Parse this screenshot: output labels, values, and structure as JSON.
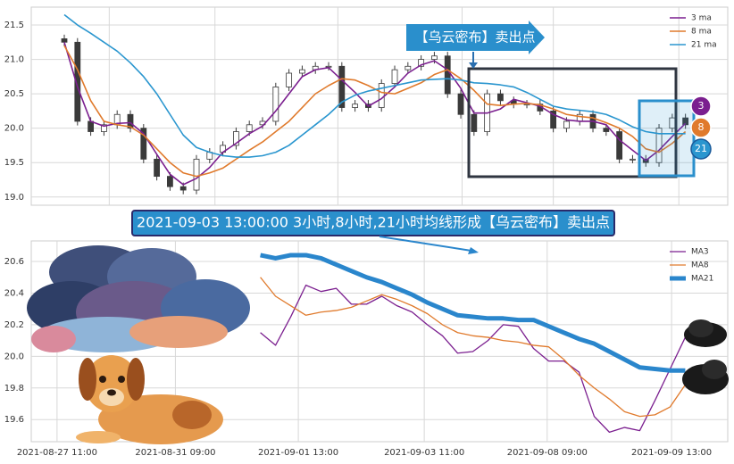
{
  "chart_data": [
    {
      "type": "candlestick",
      "categories": [
        null,
        null,
        null,
        null,
        null,
        null,
        null,
        null,
        null,
        null,
        null,
        null,
        null,
        null,
        null,
        null,
        null,
        null,
        null,
        null,
        null,
        null,
        null,
        null,
        null,
        null,
        null,
        null,
        null,
        null,
        null,
        null,
        null,
        null,
        null,
        null,
        null,
        null,
        null,
        null,
        null,
        null,
        null,
        null,
        null,
        null,
        null,
        null
      ],
      "open": [
        21.3,
        21.25,
        20.1,
        19.95,
        20.05,
        20.2,
        20.0,
        19.55,
        19.3,
        19.15,
        19.1,
        19.55,
        19.65,
        19.75,
        19.95,
        20.05,
        20.1,
        20.6,
        20.8,
        20.85,
        20.9,
        20.9,
        20.3,
        20.35,
        20.3,
        20.65,
        20.85,
        20.9,
        21.0,
        21.05,
        20.5,
        20.2,
        19.95,
        20.5,
        20.4,
        20.35,
        20.35,
        20.25,
        20.0,
        20.1,
        20.2,
        20.0,
        19.95,
        19.55,
        19.55,
        19.5,
        20.0,
        20.15
      ],
      "high": [
        21.36,
        21.31,
        20.16,
        20.11,
        20.26,
        20.26,
        20.06,
        19.61,
        19.36,
        19.21,
        19.61,
        19.71,
        19.81,
        20.01,
        20.11,
        20.16,
        20.66,
        20.86,
        20.91,
        20.96,
        20.96,
        20.96,
        20.41,
        20.41,
        20.71,
        20.91,
        20.96,
        21.06,
        21.11,
        21.11,
        20.56,
        20.26,
        20.56,
        20.56,
        20.46,
        20.41,
        20.41,
        20.31,
        20.16,
        20.26,
        20.26,
        20.06,
        20.01,
        19.61,
        19.61,
        20.06,
        20.21,
        20.21
      ],
      "low": [
        21.19,
        20.04,
        19.89,
        19.89,
        19.99,
        19.94,
        19.49,
        19.24,
        19.09,
        19.04,
        19.04,
        19.49,
        19.59,
        19.69,
        19.89,
        19.99,
        20.04,
        20.54,
        20.74,
        20.79,
        20.84,
        20.24,
        20.24,
        20.24,
        20.24,
        20.59,
        20.79,
        20.84,
        20.94,
        20.44,
        20.14,
        19.89,
        19.89,
        20.34,
        20.29,
        20.29,
        20.19,
        19.94,
        19.94,
        20.04,
        19.94,
        19.89,
        19.49,
        19.49,
        19.44,
        19.44,
        19.94,
        19.99
      ],
      "close": [
        21.25,
        20.1,
        19.95,
        20.05,
        20.2,
        20.0,
        19.55,
        19.3,
        19.15,
        19.1,
        19.55,
        19.65,
        19.75,
        19.95,
        20.05,
        20.1,
        20.6,
        20.8,
        20.85,
        20.9,
        20.9,
        20.3,
        20.35,
        20.3,
        20.65,
        20.85,
        20.9,
        21.0,
        21.05,
        20.5,
        20.2,
        19.95,
        20.5,
        20.4,
        20.35,
        20.35,
        20.25,
        20.0,
        20.1,
        20.2,
        20.0,
        19.95,
        19.55,
        19.55,
        19.5,
        20.0,
        20.15,
        20.05
      ],
      "candle_colors": {
        "up": "#ffffff",
        "down": "#3a3a3a"
      },
      "series": [
        {
          "name": "3 ma",
          "color": "#7b1f8f",
          "values": [
            21.25,
            20.6,
            20.1,
            20.03,
            20.07,
            20.08,
            19.92,
            19.62,
            19.33,
            19.18,
            19.27,
            19.43,
            19.65,
            19.78,
            19.92,
            20.03,
            20.25,
            20.5,
            20.75,
            20.85,
            20.88,
            20.7,
            20.52,
            20.32,
            20.43,
            20.6,
            20.8,
            20.92,
            20.98,
            20.85,
            20.58,
            20.22,
            20.22,
            20.28,
            20.42,
            20.37,
            20.32,
            20.2,
            20.12,
            20.1,
            20.1,
            20.05,
            19.83,
            19.68,
            19.53,
            19.68,
            19.88,
            20.07
          ]
        },
        {
          "name": "8 ma",
          "color": "#e07a2c",
          "values": [
            21.2,
            20.85,
            20.4,
            20.1,
            20.05,
            20.02,
            19.9,
            19.7,
            19.5,
            19.35,
            19.3,
            19.35,
            19.42,
            19.55,
            19.68,
            19.8,
            19.95,
            20.1,
            20.3,
            20.5,
            20.62,
            20.72,
            20.7,
            20.62,
            20.52,
            20.5,
            20.58,
            20.66,
            20.78,
            20.85,
            20.72,
            20.55,
            20.35,
            20.33,
            20.35,
            20.36,
            20.34,
            20.28,
            20.2,
            20.17,
            20.15,
            20.08,
            20.0,
            19.88,
            19.7,
            19.65,
            19.78,
            19.95
          ]
        },
        {
          "name": "21 ma",
          "color": "#2a96cf",
          "values": [
            21.65,
            21.5,
            21.38,
            21.25,
            21.12,
            20.95,
            20.75,
            20.5,
            20.2,
            19.9,
            19.72,
            19.65,
            19.6,
            19.58,
            19.58,
            19.6,
            19.65,
            19.75,
            19.9,
            20.05,
            20.2,
            20.38,
            20.48,
            20.54,
            20.58,
            20.62,
            20.66,
            20.7,
            20.71,
            20.72,
            20.7,
            20.66,
            20.65,
            20.63,
            20.6,
            20.52,
            20.42,
            20.32,
            20.28,
            20.26,
            20.24,
            20.2,
            20.12,
            20.02,
            19.95,
            19.92,
            19.92,
            19.92
          ]
        }
      ],
      "xlim": [
        -2.5,
        50.2
      ],
      "xticks": [
        3.4,
        11.4,
        20.7,
        30.1,
        37,
        46.5
      ],
      "ylim": [
        18.88,
        21.76
      ],
      "yticks": [
        {
          "value": 19,
          "label": "19.0"
        },
        19.5,
        {
          "value": 20,
          "label": "20.0"
        },
        20.5,
        {
          "value": 21,
          "label": "21.0"
        },
        21.5
      ],
      "grid": true,
      "legend": "upper right",
      "annotations": [
        "【乌云密布】卖出点",
        "3",
        "8",
        "21"
      ]
    },
    {
      "type": "line",
      "categories": [
        null,
        null,
        null,
        null,
        null,
        null,
        null,
        null,
        null,
        null,
        null,
        null,
        null,
        null,
        null,
        null,
        null,
        null,
        null,
        null,
        null,
        null,
        null,
        null,
        null,
        null,
        null,
        null,
        null
      ],
      "series": [
        {
          "name": "MA3",
          "color": "#7b1f8f",
          "values": [
            20.15,
            20.07,
            20.25,
            20.45,
            20.41,
            20.43,
            20.33,
            20.33,
            20.38,
            20.32,
            20.28,
            20.2,
            20.13,
            20.02,
            20.03,
            20.1,
            20.2,
            20.19,
            20.05,
            19.97,
            19.97,
            19.9,
            19.62,
            19.52,
            19.55,
            19.53,
            19.72,
            19.92,
            20.12
          ]
        },
        {
          "name": "MA8",
          "color": "#e07a2c",
          "values": [
            20.5,
            20.38,
            20.32,
            20.26,
            20.28,
            20.29,
            20.31,
            20.35,
            20.39,
            20.36,
            20.32,
            20.27,
            20.2,
            20.15,
            20.13,
            20.12,
            20.1,
            20.09,
            20.07,
            20.06,
            19.98,
            19.88,
            19.8,
            19.73,
            19.65,
            19.62,
            19.63,
            19.68,
            19.82
          ]
        },
        {
          "name": "MA21",
          "color": "#2a86cc",
          "values": [
            20.64,
            20.62,
            20.64,
            20.64,
            20.62,
            20.58,
            20.54,
            20.5,
            20.47,
            20.43,
            20.39,
            20.34,
            20.3,
            20.26,
            20.25,
            20.24,
            20.24,
            20.23,
            20.23,
            20.19,
            20.15,
            20.11,
            20.08,
            20.03,
            19.98,
            19.93,
            19.92,
            19.91,
            19.91
          ]
        }
      ],
      "xlim": [
        -15.1,
        30.8
      ],
      "xticks": [
        {
          "value": -13.4,
          "label": "2021-08-27 11:00"
        },
        {
          "value": -5.6,
          "label": "2021-08-31 09:00"
        },
        {
          "value": 2.5,
          "label": "2021-09-01 13:00"
        },
        {
          "value": 10.8,
          "label": "2021-09-03 11:00"
        },
        {
          "value": 18.9,
          "label": "2021-09-08 09:00"
        },
        {
          "value": 27.1,
          "label": "2021-09-09 13:00"
        }
      ],
      "ylim": [
        19.46,
        20.73
      ],
      "yticks": [
        19.6,
        19.8,
        {
          "value": 20,
          "label": "20.0"
        },
        20.2,
        20.4,
        20.6
      ],
      "grid": true,
      "legend": "upper right",
      "annotations": [
        "2021-09-03 13:00:00 3小时,8小时,21小时均线形成【乌云密布】卖出点"
      ]
    }
  ]
}
